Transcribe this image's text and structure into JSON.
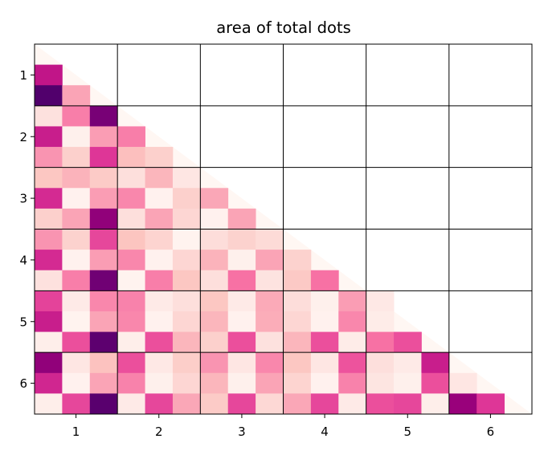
{
  "chart_data": {
    "type": "heatmap",
    "title": "area of total dots",
    "xlabel": "",
    "ylabel": "",
    "x_ticks": [
      "1",
      "2",
      "3",
      "4",
      "5",
      "6"
    ],
    "y_ticks": [
      "1",
      "2",
      "3",
      "4",
      "5",
      "6"
    ],
    "groups": 6,
    "sub_cells_per_group": 3,
    "colormap": "RdPu",
    "value_range": [
      0,
      1
    ],
    "layout": "lower-triangular",
    "grid": true,
    "rows": [
      [],
      [
        0.7
      ],
      [
        0.98,
        0.36
      ],
      [
        0.12,
        0.45,
        0.88
      ],
      [
        0.68,
        0.04,
        0.38,
        0.45
      ],
      [
        0.4,
        0.2,
        0.62,
        0.27,
        0.2
      ],
      [
        0.24,
        0.31,
        0.22,
        0.13,
        0.3,
        0.09
      ],
      [
        0.65,
        0.03,
        0.38,
        0.43,
        0.03,
        0.2,
        0.35
      ],
      [
        0.2,
        0.36,
        0.82,
        0.13,
        0.36,
        0.17,
        0.03,
        0.36
      ],
      [
        0.4,
        0.19,
        0.58,
        0.25,
        0.18,
        0.02,
        0.14,
        0.19,
        0.15
      ],
      [
        0.65,
        0.03,
        0.38,
        0.43,
        0.03,
        0.17,
        0.31,
        0.04,
        0.36,
        0.19
      ],
      [
        0.12,
        0.45,
        0.9,
        0.02,
        0.45,
        0.24,
        0.13,
        0.48,
        0.11,
        0.23,
        0.48
      ],
      [
        0.59,
        0.07,
        0.43,
        0.44,
        0.07,
        0.13,
        0.24,
        0.07,
        0.34,
        0.14,
        0.04,
        0.38,
        0.08
      ],
      [
        0.68,
        0.02,
        0.36,
        0.43,
        0.03,
        0.17,
        0.3,
        0.03,
        0.33,
        0.17,
        0.03,
        0.43,
        0.06
      ],
      [
        0.05,
        0.56,
        0.95,
        0.05,
        0.56,
        0.3,
        0.2,
        0.56,
        0.12,
        0.3,
        0.56,
        0.06,
        0.48,
        0.56
      ],
      [
        0.82,
        0.09,
        0.26,
        0.56,
        0.08,
        0.21,
        0.4,
        0.09,
        0.43,
        0.24,
        0.09,
        0.55,
        0.13,
        0.07,
        0.68
      ],
      [
        0.66,
        0.03,
        0.36,
        0.44,
        0.04,
        0.17,
        0.3,
        0.04,
        0.36,
        0.18,
        0.03,
        0.44,
        0.1,
        0.04,
        0.56,
        0.09
      ],
      [
        0.05,
        0.58,
        0.96,
        0.07,
        0.58,
        0.35,
        0.22,
        0.58,
        0.16,
        0.35,
        0.58,
        0.07,
        0.56,
        0.58,
        0.05,
        0.8,
        0.62
      ]
    ]
  }
}
